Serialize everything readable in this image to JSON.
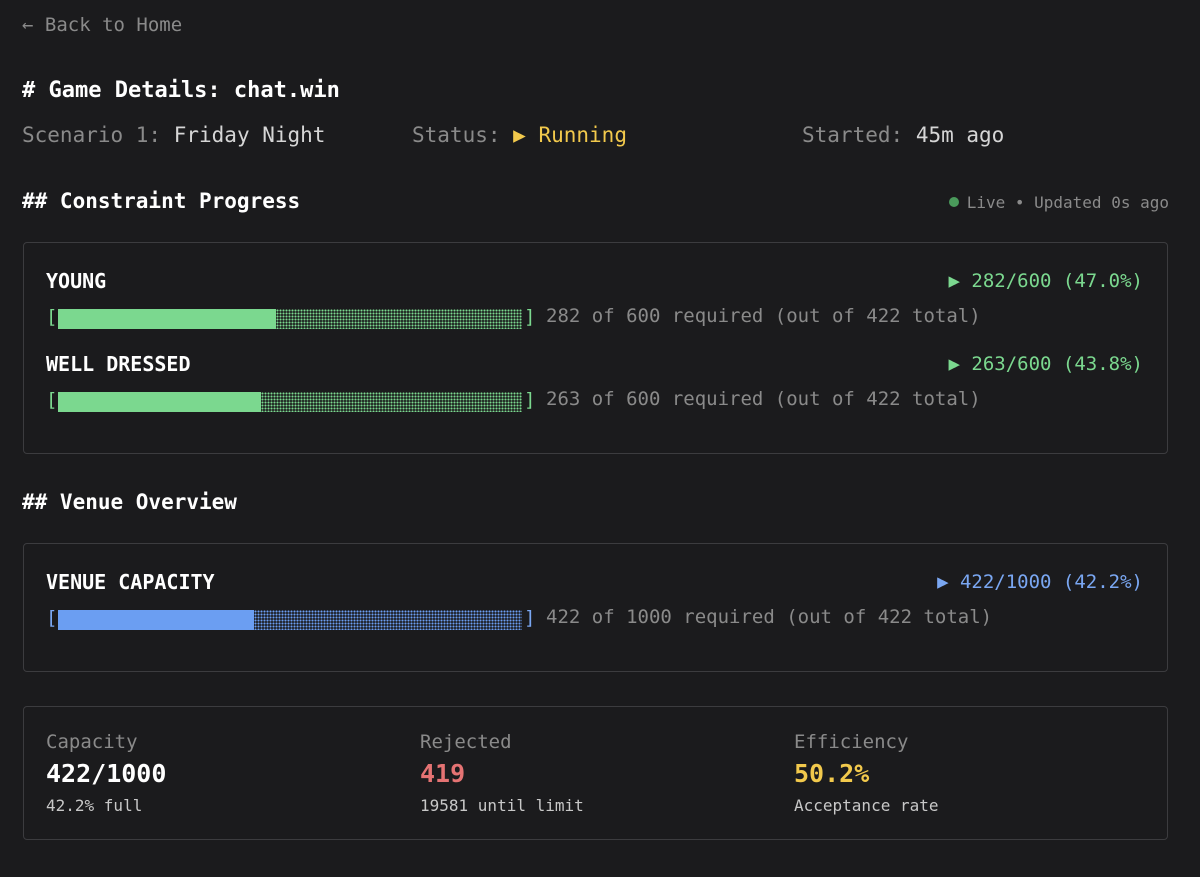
{
  "nav": {
    "back_label": "← Back to Home"
  },
  "header": {
    "title": "# Game Details: chat.win",
    "scenario_label": "Scenario 1:",
    "scenario_value": "Friday Night",
    "status_label": "Status:",
    "status_value": "▶ Running",
    "started_label": "Started:",
    "started_value": "45m ago"
  },
  "constraints": {
    "heading": "## Constraint Progress",
    "live_text": "Live • Updated 0s ago",
    "items": [
      {
        "name": "YOUNG",
        "stat": "▶ 282/600 (47.0%)",
        "progress": 0.47,
        "bracket_open": "[",
        "bracket_close": "]",
        "detail": "282 of 600 required (out of 422 total)"
      },
      {
        "name": "WELL DRESSED",
        "stat": "▶ 263/600 (43.8%)",
        "progress": 0.438,
        "bracket_open": "[",
        "bracket_close": "]",
        "detail": "263 of 600 required (out of 422 total)"
      }
    ]
  },
  "venue": {
    "heading": "## Venue Overview",
    "name": "VENUE CAPACITY",
    "stat": "▶ 422/1000 (42.2%)",
    "progress": 0.422,
    "bracket_open": "[",
    "bracket_close": "]",
    "detail": "422 of 1000 required (out of 422 total)"
  },
  "stats": {
    "capacity": {
      "label": "Capacity",
      "value": "422/1000",
      "sub": "42.2% full"
    },
    "rejected": {
      "label": "Rejected",
      "value": "419",
      "sub": "19581 until limit"
    },
    "efficiency": {
      "label": "Efficiency",
      "value": "50.2%",
      "sub": "Acceptance rate"
    }
  },
  "colors": {
    "background": "#1b1b1d",
    "green": "#7bd88f",
    "blue": "#6b9ef2",
    "yellow": "#f2c94c",
    "red": "#e57373"
  }
}
